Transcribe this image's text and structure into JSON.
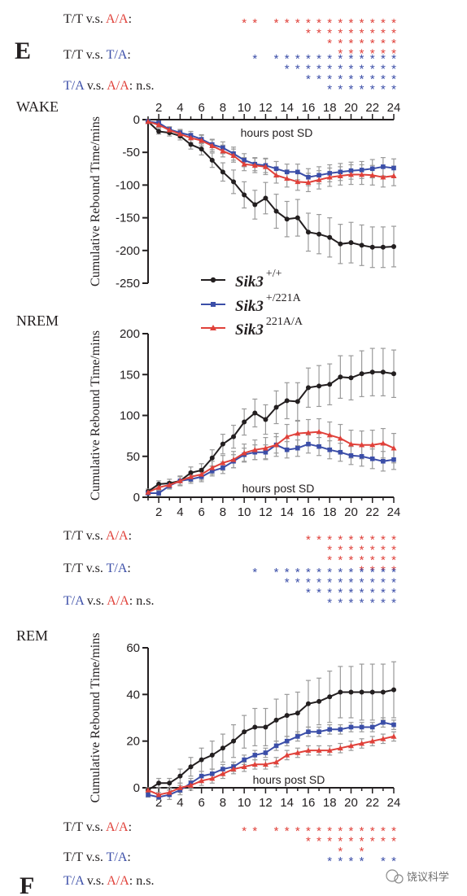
{
  "panel_labels": {
    "e": "E",
    "f": "F"
  },
  "colors": {
    "wt": "#231f20",
    "het": "#3b4ea8",
    "hom": "#e0413a",
    "error": "#9a9a9a"
  },
  "comparisons": {
    "tt_aa": {
      "left": "T/T v.s. ",
      "right": "A/A",
      "tail": ":"
    },
    "tt_ta": {
      "left": "T/T v.s. ",
      "right": "T/A",
      "tail": ":"
    },
    "ta_aa": {
      "left": "T/A",
      "mid": "v.s. ",
      "right": "A/A",
      "tail": ": n.s."
    }
  },
  "star": "*",
  "legend": [
    {
      "gene": "Sik3",
      "allele": "+/+"
    },
    {
      "gene": "Sik3",
      "allele": "+/221A"
    },
    {
      "gene": "Sik3",
      "allele": "221A/A"
    }
  ],
  "watermark": "饶议科学",
  "chart_data": [
    {
      "type": "line",
      "title": "WAKE",
      "xlabel": "hours post SD",
      "ylabel": "Cumulative Rebound Time/mins",
      "xlim": [
        1,
        24
      ],
      "ylim": [
        -250,
        0
      ],
      "xticks": [
        2,
        4,
        6,
        8,
        10,
        12,
        14,
        16,
        18,
        20,
        22,
        24
      ],
      "yticks": [
        0,
        -50,
        -100,
        -150,
        -200,
        -250
      ],
      "xaxis_position": "top",
      "x": [
        1,
        2,
        3,
        4,
        5,
        6,
        7,
        8,
        9,
        10,
        11,
        12,
        13,
        14,
        15,
        16,
        17,
        18,
        19,
        20,
        21,
        22,
        23,
        24
      ],
      "series": [
        {
          "name": "Sik3 +/+",
          "marker": "circle",
          "color": "#231f20",
          "values": [
            -3,
            -18,
            -20,
            -25,
            -38,
            -45,
            -62,
            -80,
            -95,
            -115,
            -130,
            -120,
            -140,
            -152,
            -150,
            -172,
            -175,
            -180,
            -190,
            -188,
            -192,
            -195,
            -195,
            -194
          ],
          "errors": [
            3,
            4,
            5,
            6,
            7,
            9,
            11,
            14,
            18,
            20,
            22,
            24,
            26,
            27,
            28,
            29,
            30,
            30,
            30,
            31,
            31,
            31,
            31,
            31
          ]
        },
        {
          "name": "Sik3 +/221A",
          "marker": "square",
          "color": "#3b4ea8",
          "values": [
            -3,
            -5,
            -15,
            -20,
            -24,
            -30,
            -38,
            -43,
            -52,
            -62,
            -68,
            -70,
            -75,
            -80,
            -80,
            -88,
            -85,
            -82,
            -80,
            -78,
            -77,
            -75,
            -72,
            -74
          ],
          "errors": [
            2,
            3,
            4,
            5,
            6,
            7,
            8,
            9,
            10,
            10,
            10,
            11,
            11,
            12,
            12,
            13,
            13,
            13,
            13,
            13,
            13,
            14,
            14,
            14
          ]
        },
        {
          "name": "Sik3 221A/A",
          "marker": "triangle",
          "color": "#e0413a",
          "values": [
            -3,
            -8,
            -16,
            -22,
            -28,
            -32,
            -40,
            -48,
            -55,
            -68,
            -70,
            -72,
            -85,
            -90,
            -95,
            -96,
            -92,
            -88,
            -86,
            -84,
            -84,
            -85,
            -88,
            -86
          ],
          "errors": [
            2,
            4,
            5,
            6,
            7,
            8,
            9,
            9,
            10,
            10,
            11,
            12,
            12,
            13,
            13,
            14,
            14,
            14,
            14,
            15,
            15,
            15,
            15,
            15
          ]
        }
      ],
      "significance": {
        "tt_aa": [
          [
            10,
            11,
            13,
            14,
            15,
            16,
            17,
            18,
            19,
            20,
            21,
            22,
            23,
            24
          ],
          [
            16,
            17,
            18,
            19,
            20,
            21,
            22,
            23,
            24
          ],
          [
            18,
            19,
            20,
            21,
            22,
            23,
            24
          ],
          [
            19,
            20,
            21,
            22,
            23,
            24
          ]
        ],
        "tt_ta": [
          [
            11,
            13,
            14,
            15,
            16,
            17,
            18,
            19,
            20,
            21,
            22,
            23,
            24
          ],
          [
            14,
            15,
            16,
            17,
            18,
            19,
            20,
            21,
            22,
            23,
            24
          ],
          [
            16,
            17,
            18,
            19,
            20,
            21,
            22,
            23,
            24
          ],
          [
            18,
            19,
            20,
            21,
            22,
            23,
            24
          ]
        ]
      }
    },
    {
      "type": "line",
      "title": "NREM",
      "xlabel": "hours post SD",
      "ylabel": "Cumulative Rebound Time/mins",
      "xlim": [
        1,
        24
      ],
      "ylim": [
        0,
        200
      ],
      "xticks": [
        2,
        4,
        6,
        8,
        10,
        12,
        14,
        16,
        18,
        20,
        22,
        24
      ],
      "yticks": [
        0,
        50,
        100,
        150,
        200
      ],
      "xaxis_position": "bottom",
      "x": [
        1,
        2,
        3,
        4,
        5,
        6,
        7,
        8,
        9,
        10,
        11,
        12,
        13,
        14,
        15,
        16,
        17,
        18,
        19,
        20,
        21,
        22,
        23,
        24
      ],
      "series": [
        {
          "name": "Sik3 +/+",
          "marker": "circle",
          "color": "#231f20",
          "values": [
            7,
            16,
            17,
            20,
            30,
            33,
            48,
            65,
            74,
            92,
            103,
            95,
            110,
            118,
            117,
            134,
            136,
            138,
            147,
            146,
            151,
            153,
            153,
            151
          ],
          "errors": [
            3,
            4,
            5,
            6,
            7,
            8,
            10,
            12,
            14,
            16,
            17,
            18,
            20,
            22,
            23,
            24,
            25,
            25,
            26,
            27,
            28,
            29,
            29,
            29
          ]
        },
        {
          "name": "Sik3 +/221A",
          "marker": "square",
          "color": "#3b4ea8",
          "values": [
            5,
            5,
            14,
            20,
            22,
            25,
            32,
            36,
            44,
            52,
            55,
            55,
            64,
            58,
            60,
            65,
            62,
            58,
            55,
            51,
            50,
            47,
            44,
            46
          ],
          "errors": [
            2,
            3,
            4,
            5,
            5,
            6,
            6,
            7,
            8,
            8,
            9,
            9,
            10,
            10,
            10,
            11,
            11,
            11,
            11,
            11,
            12,
            12,
            12,
            12
          ]
        },
        {
          "name": "Sik3 221A/A",
          "marker": "triangle",
          "color": "#e0413a",
          "values": [
            6,
            12,
            15,
            20,
            25,
            28,
            36,
            42,
            46,
            54,
            58,
            60,
            64,
            74,
            78,
            79,
            80,
            76,
            72,
            65,
            64,
            64,
            66,
            60
          ],
          "errors": [
            2,
            3,
            4,
            5,
            6,
            7,
            8,
            9,
            10,
            11,
            12,
            13,
            14,
            15,
            15,
            16,
            16,
            16,
            17,
            17,
            17,
            18,
            18,
            18
          ]
        }
      ],
      "significance": {
        "tt_aa": [
          [
            16,
            17,
            18,
            19,
            20,
            21,
            22,
            23,
            24
          ],
          [
            18,
            19,
            20,
            21,
            22,
            23,
            24
          ],
          [
            18,
            19,
            20,
            21,
            22,
            23,
            24
          ],
          [
            21,
            22,
            23,
            24
          ]
        ],
        "tt_ta": [
          [
            11,
            13,
            14,
            15,
            16,
            17,
            18,
            19,
            20,
            21,
            22,
            23,
            24
          ],
          [
            14,
            15,
            16,
            17,
            18,
            19,
            20,
            21,
            22,
            23,
            24
          ],
          [
            16,
            17,
            18,
            19,
            20,
            21,
            22,
            23,
            24
          ],
          [
            18,
            19,
            20,
            21,
            22,
            23,
            24
          ]
        ]
      }
    },
    {
      "type": "line",
      "title": "REM",
      "xlabel": "hours post SD",
      "ylabel": "Cumulative Rebound Time/mins",
      "xlim": [
        1,
        24
      ],
      "ylim": [
        0,
        60
      ],
      "xticks": [
        2,
        4,
        6,
        8,
        10,
        12,
        14,
        16,
        18,
        20,
        22,
        24
      ],
      "yticks": [
        0,
        20,
        40,
        60
      ],
      "xaxis_position": "bottom",
      "x": [
        1,
        2,
        3,
        4,
        5,
        6,
        7,
        8,
        9,
        10,
        11,
        12,
        13,
        14,
        15,
        16,
        17,
        18,
        19,
        20,
        21,
        22,
        23,
        24
      ],
      "series": [
        {
          "name": "Sik3 +/+",
          "marker": "circle",
          "color": "#231f20",
          "values": [
            -1,
            2,
            2,
            5,
            9,
            12,
            14,
            17,
            20,
            24,
            26,
            26,
            29,
            31,
            32,
            36,
            37,
            39,
            41,
            41,
            41,
            41,
            41,
            42
          ],
          "errors": [
            1,
            2,
            2,
            3,
            4,
            5,
            6,
            6,
            7,
            7,
            8,
            8,
            9,
            9,
            9,
            10,
            10,
            11,
            11,
            11,
            12,
            12,
            12,
            12
          ]
        },
        {
          "name": "Sik3 +/221A",
          "marker": "square",
          "color": "#3b4ea8",
          "values": [
            -3,
            -4,
            -3,
            -1,
            2,
            5,
            6,
            8,
            9,
            12,
            14,
            15,
            18,
            20,
            22,
            24,
            24,
            25,
            25,
            26,
            26,
            26,
            28,
            27
          ],
          "errors": [
            1,
            1,
            2,
            2,
            2,
            2,
            2,
            2,
            2,
            2,
            2,
            2,
            2,
            2,
            2,
            2,
            2,
            2,
            2,
            2,
            2,
            2,
            2,
            2
          ]
        },
        {
          "name": "Sik3 221A/A",
          "marker": "triangle",
          "color": "#e0413a",
          "values": [
            -1,
            -3,
            -2,
            0,
            1,
            3,
            4,
            6,
            8,
            9,
            10,
            10,
            11,
            14,
            15,
            16,
            16,
            16,
            17,
            18,
            19,
            20,
            21,
            22
          ],
          "errors": [
            1,
            1,
            1,
            2,
            2,
            2,
            2,
            2,
            2,
            2,
            2,
            2,
            2,
            2,
            2,
            2,
            2,
            2,
            2,
            2,
            2,
            2,
            2,
            2
          ]
        }
      ],
      "significance": {
        "tt_aa": [
          [
            10,
            11,
            13,
            14,
            15,
            16,
            17,
            18,
            19,
            20,
            21,
            22,
            23,
            24
          ],
          [
            16,
            17,
            18,
            19,
            20,
            21,
            22,
            23,
            24
          ],
          [
            19,
            21
          ]
        ],
        "tt_ta": [
          [
            18,
            19,
            20,
            21,
            23,
            24
          ]
        ]
      }
    }
  ]
}
